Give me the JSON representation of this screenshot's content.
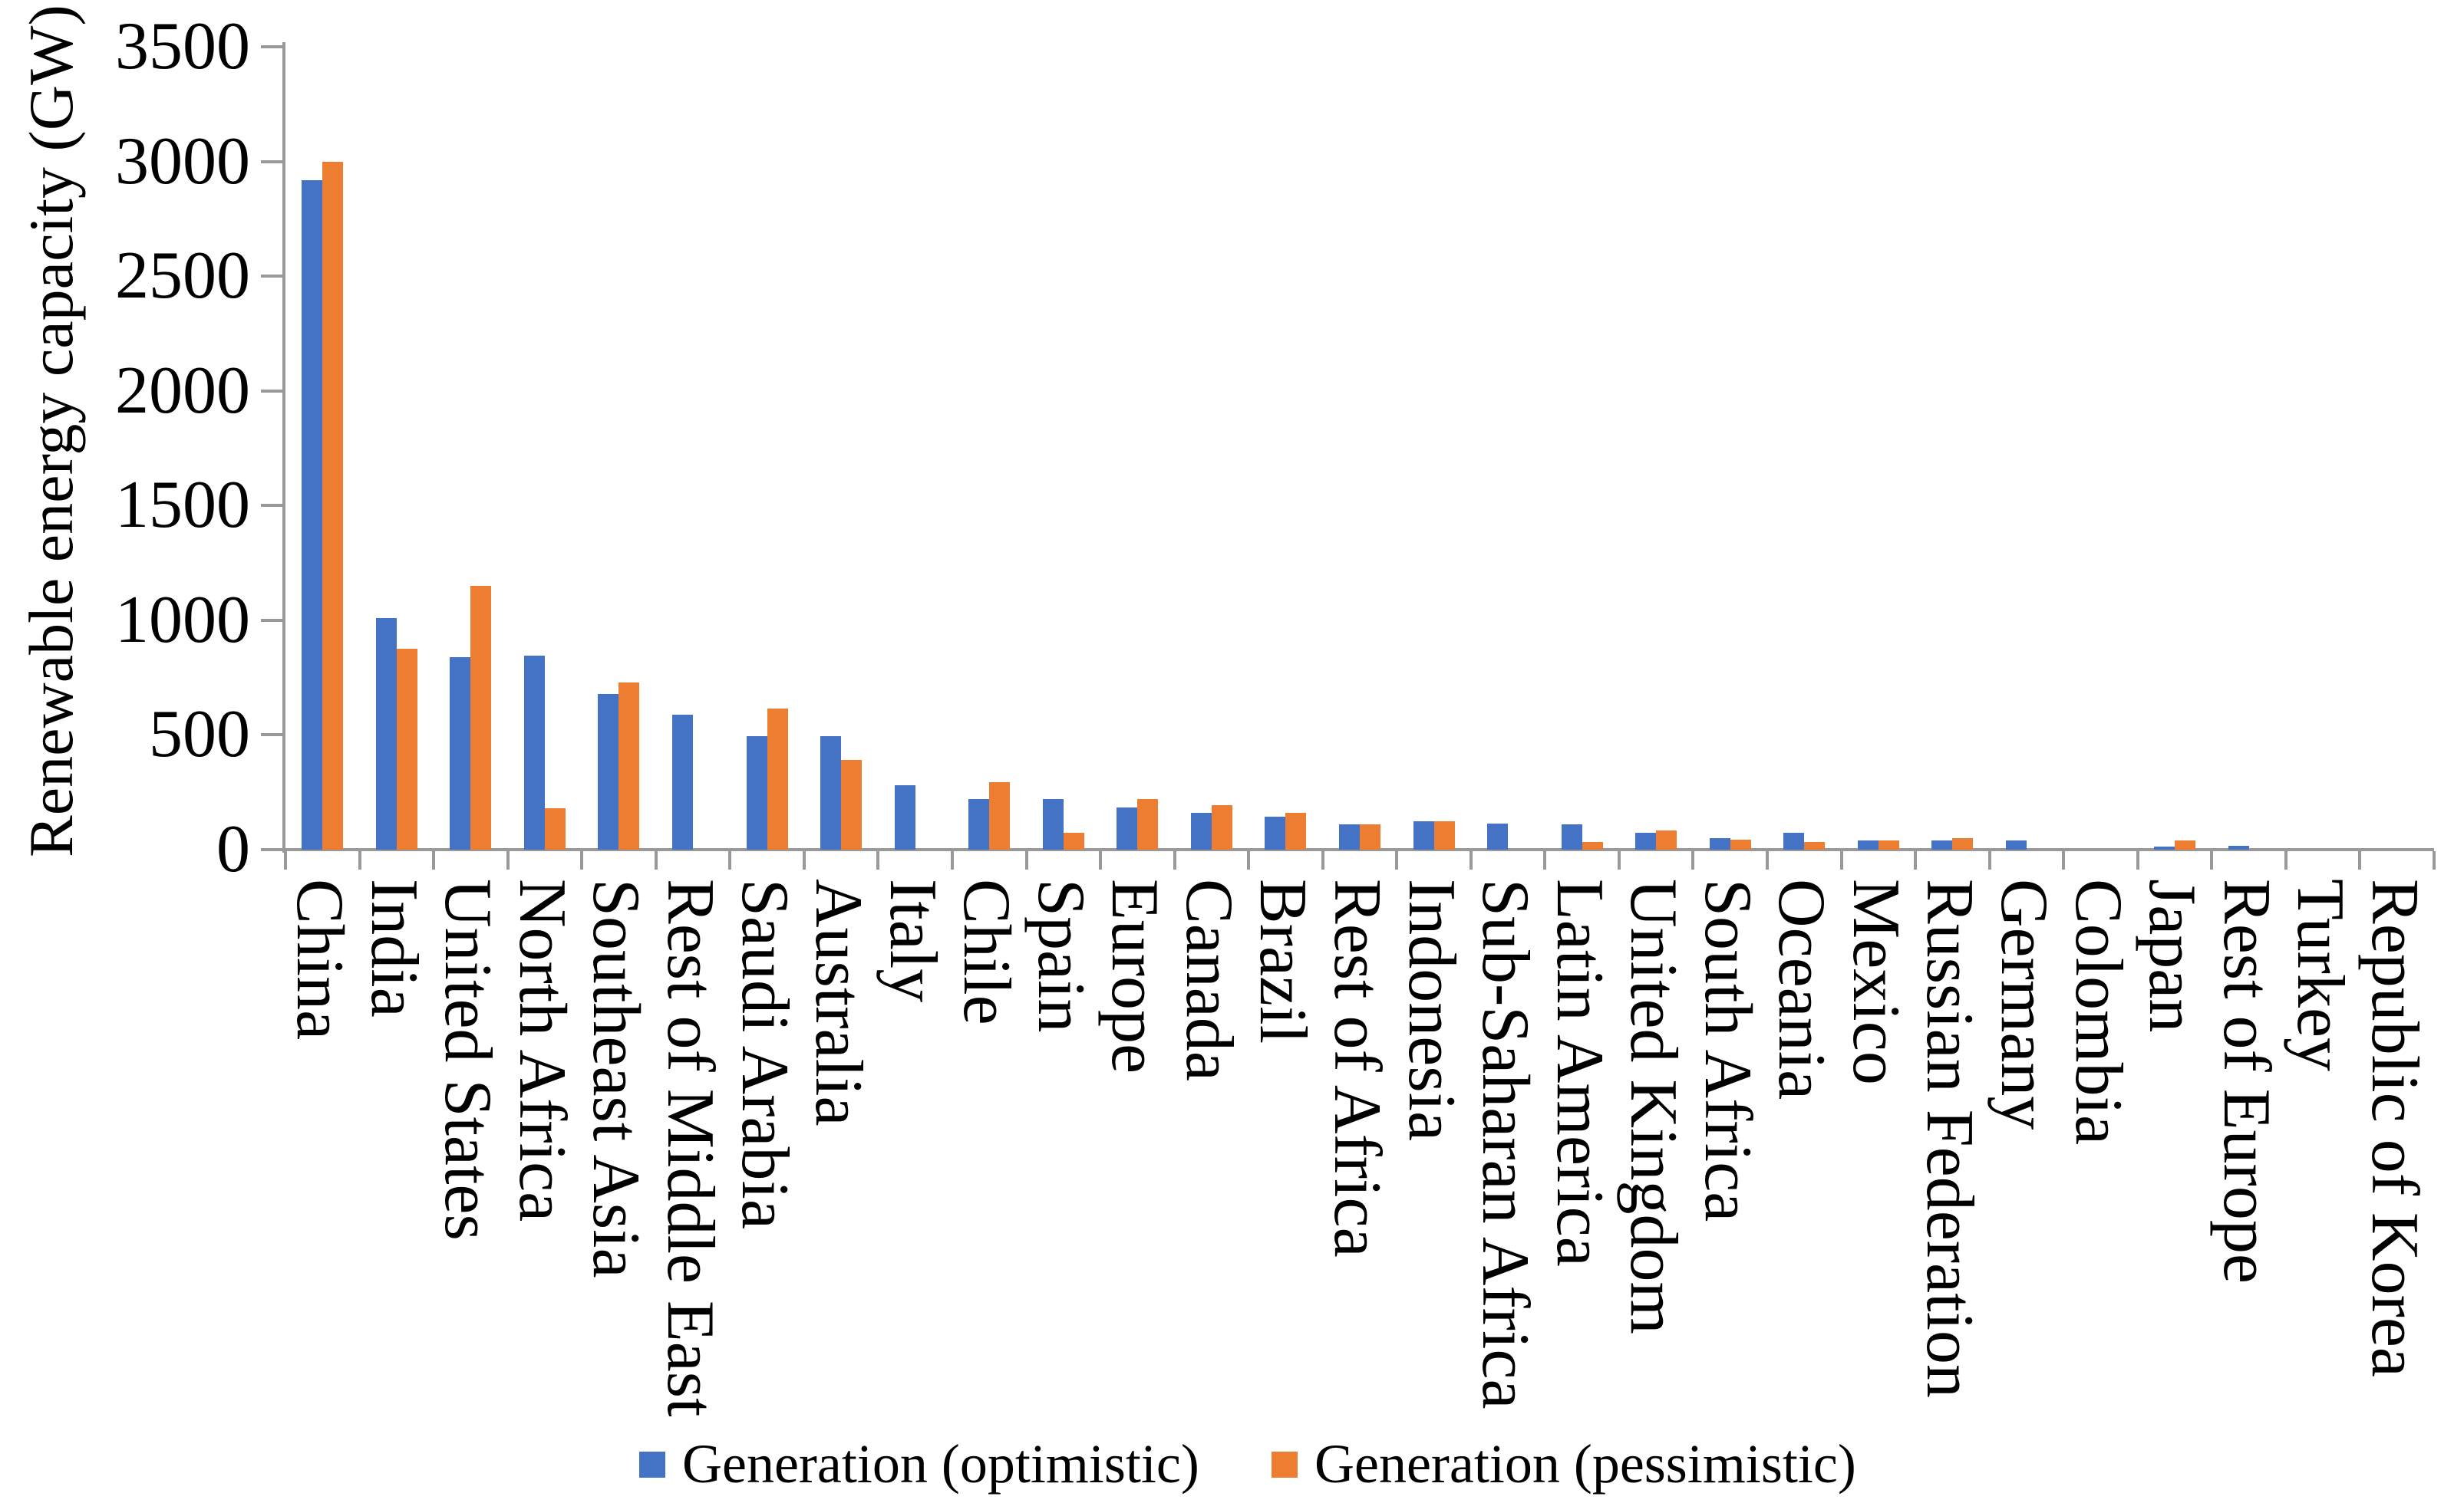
{
  "page": {
    "background": "#ffffff"
  },
  "axis": {
    "line_color": "#999999",
    "text_color": "#000000"
  },
  "chart_data": {
    "type": "bar",
    "title": "",
    "xlabel": "",
    "ylabel": "Renewable energy capacity (GW)",
    "ylim": [
      0,
      3500
    ],
    "ytick_step": 500,
    "yticks": [
      0,
      500,
      1000,
      1500,
      2000,
      2500,
      3000,
      3500
    ],
    "grid": false,
    "legend_position": "bottom",
    "categories": [
      "China",
      "India",
      "United States",
      "North Africa",
      "Southeast Asia",
      "Rest of Middle East",
      "Saudi Arabia",
      "Australia",
      "Italy",
      "Chile",
      "Spain",
      "Europe",
      "Canada",
      "Brazil",
      "Rest of Africa",
      "Indonesia",
      "Sub-Saharan Africa",
      "Latin America",
      "United Kingdom",
      "South Africa",
      "Oceania",
      "Mexico",
      "Russian Federation",
      "Germany",
      "Colombia",
      "Japan",
      "Rest of Europe",
      "Turkey",
      "Republic of Korea"
    ],
    "series": [
      {
        "name": "Generation (optimistic)",
        "color": "#4472C4",
        "values": [
          2920,
          1010,
          840,
          845,
          680,
          590,
          495,
          495,
          280,
          220,
          220,
          185,
          160,
          145,
          110,
          125,
          112,
          110,
          75,
          50,
          75,
          40,
          40,
          40,
          0,
          15,
          17,
          0,
          0
        ]
      },
      {
        "name": "Generation (pessimistic)",
        "color": "#ED7D31",
        "values": [
          3000,
          875,
          1150,
          180,
          730,
          0,
          615,
          390,
          0,
          295,
          75,
          220,
          195,
          160,
          110,
          125,
          0,
          35,
          85,
          45,
          35,
          40,
          50,
          0,
          0,
          40,
          0,
          0,
          0
        ]
      }
    ]
  }
}
